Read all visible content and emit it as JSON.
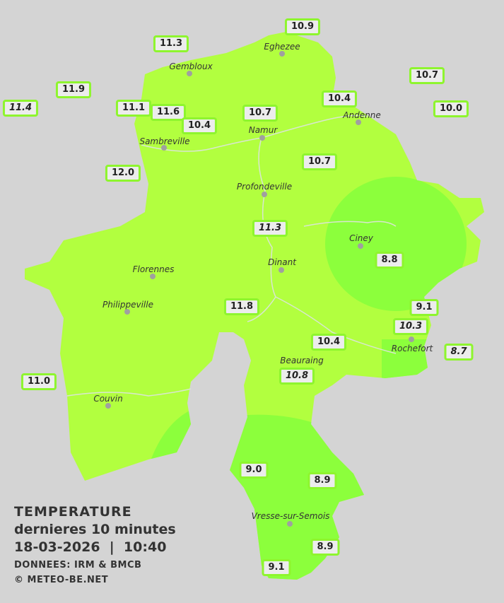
{
  "colors": {
    "background": "#d4d4d4",
    "zone_10_12": "#b2ff3f",
    "zone_8_10": "#8cff3c",
    "label_border": "#8ef52e"
  },
  "legend": {
    "title": "TEMPERATURE",
    "subtitle": "dernieres 10 minutes",
    "datetime": "18-03-2026  |  10:40",
    "source": "DONNEES: IRM & BMCB",
    "copyright": "© METEO-BE.NET"
  },
  "cities": [
    "Eghezee",
    "Gembloux",
    "Andenne",
    "Namur",
    "Sambreville",
    "Profondeville",
    "Ciney",
    "Dinant",
    "Florennes",
    "Philippeville",
    "Rochefort",
    "Beauraing",
    "Couvin",
    "Vresse-sur-Semois"
  ],
  "stations": [
    "10.9",
    "11.3",
    "10.7",
    "11.9",
    "11.4",
    "11.1",
    "11.6",
    "10.4",
    "10.7",
    "10.4",
    "10.0",
    "12.0",
    "10.7",
    "11.3",
    "8.8",
    "11.8",
    "9.1",
    "10.3",
    "10.4",
    "8.7",
    "10.8",
    "11.0",
    "9.0",
    "8.9",
    "8.9",
    "9.1"
  ]
}
